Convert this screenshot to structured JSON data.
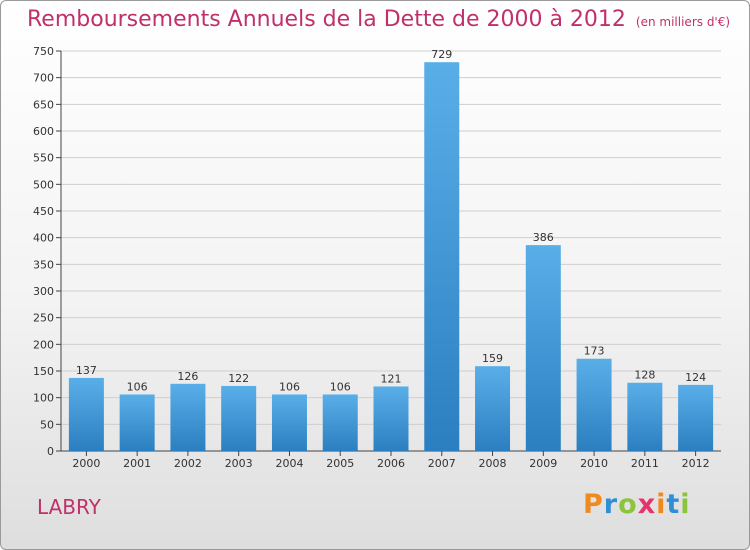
{
  "title": "Remboursements Annuels de la Dette de 2000 à 2012",
  "subtitle": "(en milliers d'€)",
  "commune": "LABRY",
  "logo_letters": [
    "P",
    "r",
    "o",
    "x",
    "i",
    "t",
    "i"
  ],
  "colors": {
    "title": "#c0306b",
    "bar_top": "#5aaee8",
    "bar_bottom": "#2b7fc0"
  },
  "chart_data": {
    "type": "bar",
    "title": "Remboursements Annuels de la Dette de 2000 à 2012",
    "subtitle": "(en milliers d'€)",
    "categories": [
      "2000",
      "2001",
      "2002",
      "2003",
      "2004",
      "2005",
      "2006",
      "2007",
      "2008",
      "2009",
      "2010",
      "2011",
      "2012"
    ],
    "values": [
      137,
      106,
      126,
      122,
      106,
      106,
      121,
      729,
      159,
      386,
      173,
      128,
      124
    ],
    "ylim": [
      0,
      750
    ],
    "yticks": [
      0,
      50,
      100,
      150,
      200,
      250,
      300,
      350,
      400,
      450,
      500,
      550,
      600,
      650,
      700,
      750
    ],
    "grid": true,
    "data_labels": true
  }
}
